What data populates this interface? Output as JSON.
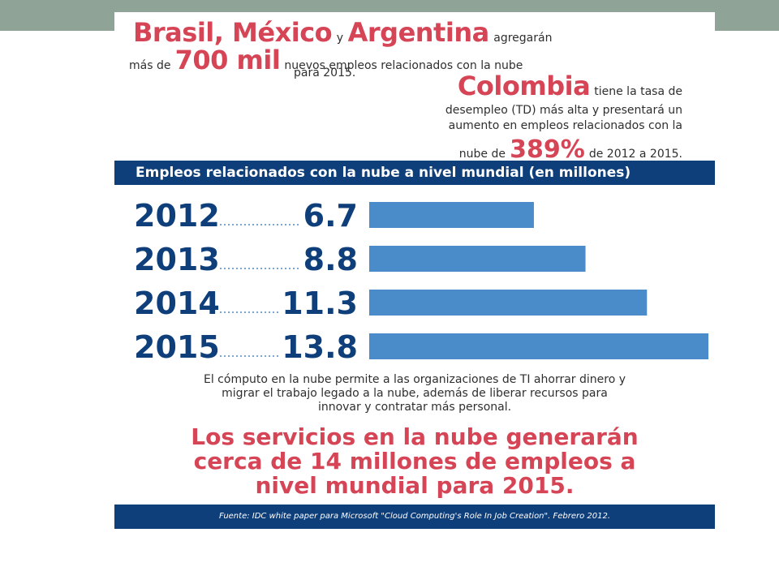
{
  "headline": {
    "countries_a": "Brasil, México",
    "connector": "y",
    "countries_b": "Argentina",
    "verb": "agregarán",
    "prefix": "más de",
    "amount": "700 mil",
    "suffix": "nuevos empleos relacionados con la nube",
    "year": "para 2015."
  },
  "colombia": {
    "name": "Colombia",
    "text_a": "tiene la tasa de",
    "text_b": "desempleo (TD) más alta y presentará un aumento en empleos relacionados con la",
    "prefix": "nube de",
    "percent": "389%",
    "suffix": "de 2012 a 2015."
  },
  "chart_data": {
    "type": "bar",
    "orientation": "horizontal",
    "title": "Empleos relacionados con la nube a nivel mundial (en millones)",
    "categories": [
      "2012",
      "2013",
      "2014",
      "2015"
    ],
    "values": [
      6.7,
      8.8,
      11.3,
      13.8
    ],
    "value_labels": [
      "6.7",
      "8.8",
      "11.3",
      "13.8"
    ],
    "xlim": [
      0,
      13.8
    ],
    "colors": {
      "bar": "#4a8cc9",
      "label": "#0f3f7a"
    }
  },
  "body_text": "El cómputo en la nube permite a las organizaciones de TI ahorrar dinero y migrar el trabajo legado a la nube, además de liberar recursos para innovar y contratar más personal.",
  "conclusion": "Los servicios en la nube generarán cerca de 14 millones de empleos a nivel mundial para 2015.",
  "footer": "Fuente: IDC white paper para Microsoft \"Cloud Computing's Role In Job Creation\". Febrero 2012.",
  "colors": {
    "navy": "#0f3f7a",
    "red": "#d64556",
    "top_strip": "#8fa397"
  }
}
